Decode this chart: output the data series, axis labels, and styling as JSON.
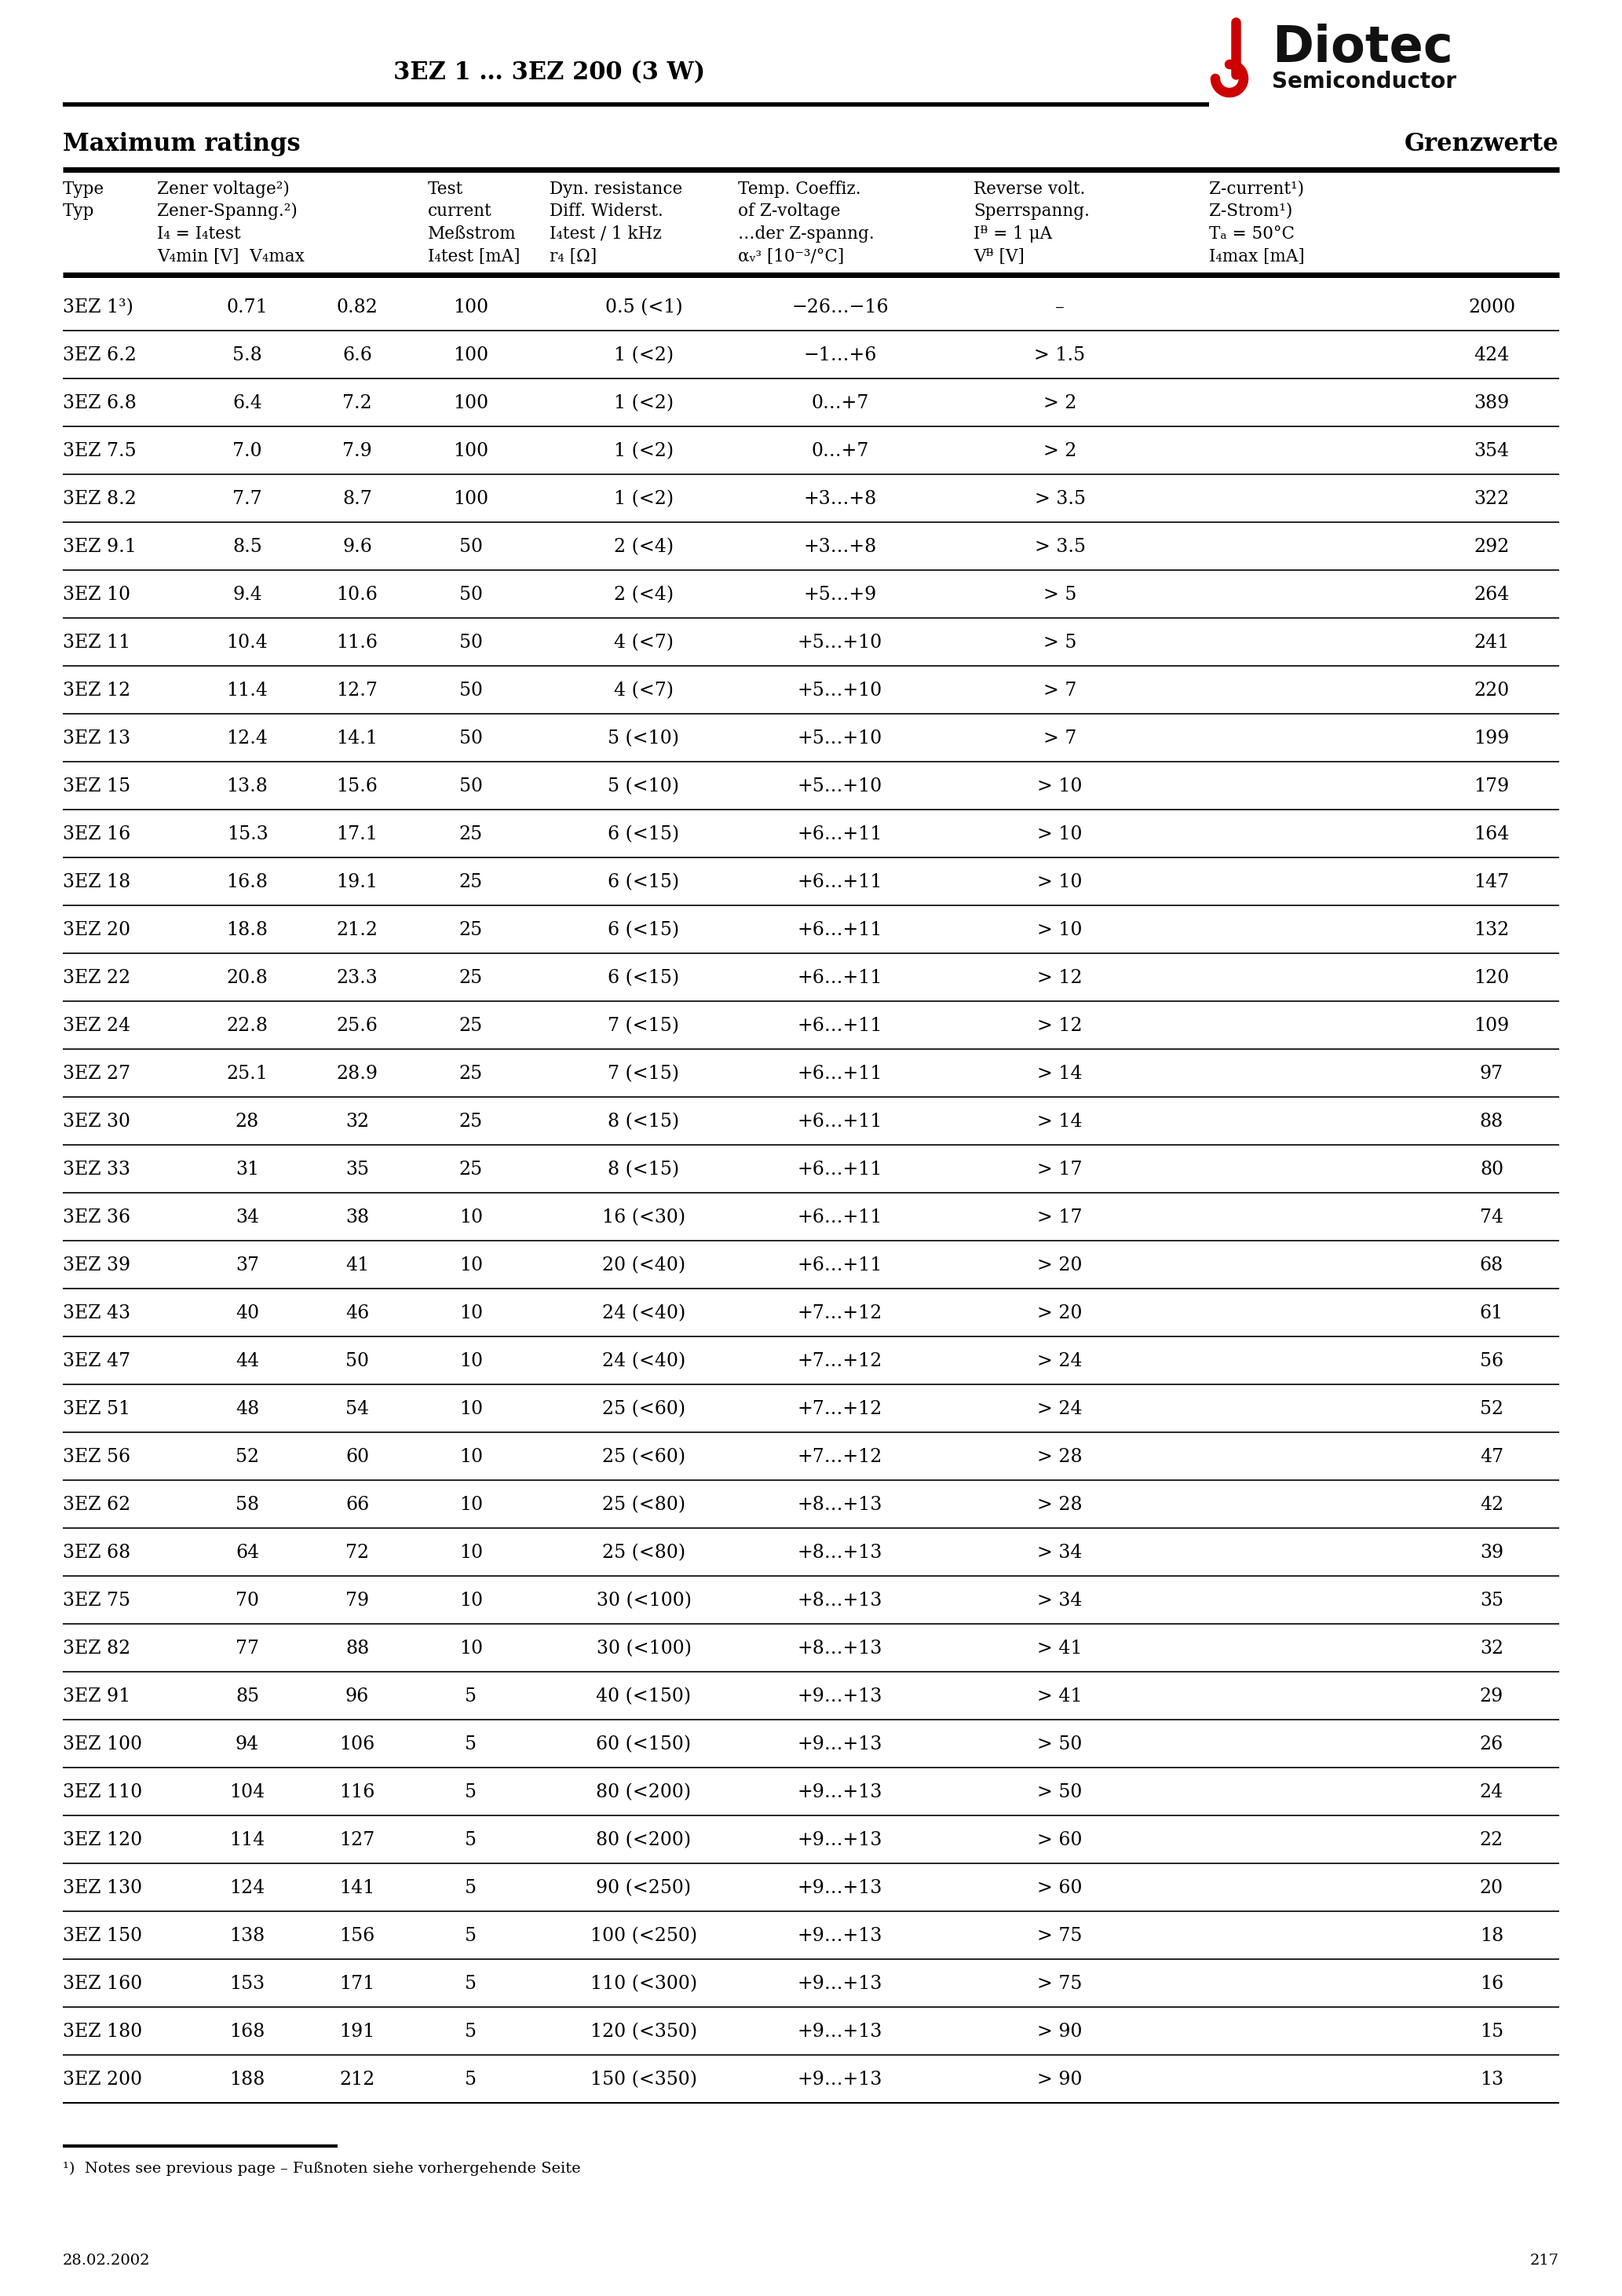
{
  "title": "3EZ 1 … 3EZ 200 (3 W)",
  "section_title_en": "Maximum ratings",
  "section_title_de": "Grenzwerte",
  "rows": [
    [
      "3EZ 1³)",
      "0.71",
      "0.82",
      "100",
      "0.5 (<1)",
      "−26…−16",
      "–",
      "2000"
    ],
    [
      "3EZ 6.2",
      "5.8",
      "6.6",
      "100",
      "1 (<2)",
      "−1…+6",
      "> 1.5",
      "424"
    ],
    [
      "3EZ 6.8",
      "6.4",
      "7.2",
      "100",
      "1 (<2)",
      "0…+7",
      "> 2",
      "389"
    ],
    [
      "3EZ 7.5",
      "7.0",
      "7.9",
      "100",
      "1 (<2)",
      "0…+7",
      "> 2",
      "354"
    ],
    [
      "3EZ 8.2",
      "7.7",
      "8.7",
      "100",
      "1 (<2)",
      "+3…+8",
      "> 3.5",
      "322"
    ],
    [
      "3EZ 9.1",
      "8.5",
      "9.6",
      "50",
      "2 (<4)",
      "+3…+8",
      "> 3.5",
      "292"
    ],
    [
      "3EZ 10",
      "9.4",
      "10.6",
      "50",
      "2 (<4)",
      "+5…+9",
      "> 5",
      "264"
    ],
    [
      "3EZ 11",
      "10.4",
      "11.6",
      "50",
      "4 (<7)",
      "+5…+10",
      "> 5",
      "241"
    ],
    [
      "3EZ 12",
      "11.4",
      "12.7",
      "50",
      "4 (<7)",
      "+5…+10",
      "> 7",
      "220"
    ],
    [
      "3EZ 13",
      "12.4",
      "14.1",
      "50",
      "5 (<10)",
      "+5…+10",
      "> 7",
      "199"
    ],
    [
      "3EZ 15",
      "13.8",
      "15.6",
      "50",
      "5 (<10)",
      "+5…+10",
      "> 10",
      "179"
    ],
    [
      "3EZ 16",
      "15.3",
      "17.1",
      "25",
      "6 (<15)",
      "+6…+11",
      "> 10",
      "164"
    ],
    [
      "3EZ 18",
      "16.8",
      "19.1",
      "25",
      "6 (<15)",
      "+6…+11",
      "> 10",
      "147"
    ],
    [
      "3EZ 20",
      "18.8",
      "21.2",
      "25",
      "6 (<15)",
      "+6…+11",
      "> 10",
      "132"
    ],
    [
      "3EZ 22",
      "20.8",
      "23.3",
      "25",
      "6 (<15)",
      "+6…+11",
      "> 12",
      "120"
    ],
    [
      "3EZ 24",
      "22.8",
      "25.6",
      "25",
      "7 (<15)",
      "+6…+11",
      "> 12",
      "109"
    ],
    [
      "3EZ 27",
      "25.1",
      "28.9",
      "25",
      "7 (<15)",
      "+6…+11",
      "> 14",
      "97"
    ],
    [
      "3EZ 30",
      "28",
      "32",
      "25",
      "8 (<15)",
      "+6…+11",
      "> 14",
      "88"
    ],
    [
      "3EZ 33",
      "31",
      "35",
      "25",
      "8 (<15)",
      "+6…+11",
      "> 17",
      "80"
    ],
    [
      "3EZ 36",
      "34",
      "38",
      "10",
      "16 (<30)",
      "+6…+11",
      "> 17",
      "74"
    ],
    [
      "3EZ 39",
      "37",
      "41",
      "10",
      "20 (<40)",
      "+6…+11",
      "> 20",
      "68"
    ],
    [
      "3EZ 43",
      "40",
      "46",
      "10",
      "24 (<40)",
      "+7…+12",
      "> 20",
      "61"
    ],
    [
      "3EZ 47",
      "44",
      "50",
      "10",
      "24 (<40)",
      "+7…+12",
      "> 24",
      "56"
    ],
    [
      "3EZ 51",
      "48",
      "54",
      "10",
      "25 (<60)",
      "+7…+12",
      "> 24",
      "52"
    ],
    [
      "3EZ 56",
      "52",
      "60",
      "10",
      "25 (<60)",
      "+7…+12",
      "> 28",
      "47"
    ],
    [
      "3EZ 62",
      "58",
      "66",
      "10",
      "25 (<80)",
      "+8…+13",
      "> 28",
      "42"
    ],
    [
      "3EZ 68",
      "64",
      "72",
      "10",
      "25 (<80)",
      "+8…+13",
      "> 34",
      "39"
    ],
    [
      "3EZ 75",
      "70",
      "79",
      "10",
      "30 (<100)",
      "+8…+13",
      "> 34",
      "35"
    ],
    [
      "3EZ 82",
      "77",
      "88",
      "10",
      "30 (<100)",
      "+8…+13",
      "> 41",
      "32"
    ],
    [
      "3EZ 91",
      "85",
      "96",
      "5",
      "40 (<150)",
      "+9…+13",
      "> 41",
      "29"
    ],
    [
      "3EZ 100",
      "94",
      "106",
      "5",
      "60 (<150)",
      "+9…+13",
      "> 50",
      "26"
    ],
    [
      "3EZ 110",
      "104",
      "116",
      "5",
      "80 (<200)",
      "+9…+13",
      "> 50",
      "24"
    ],
    [
      "3EZ 120",
      "114",
      "127",
      "5",
      "80 (<200)",
      "+9…+13",
      "> 60",
      "22"
    ],
    [
      "3EZ 130",
      "124",
      "141",
      "5",
      "90 (<250)",
      "+9…+13",
      "> 60",
      "20"
    ],
    [
      "3EZ 150",
      "138",
      "156",
      "5",
      "100 (<250)",
      "+9…+13",
      "> 75",
      "18"
    ],
    [
      "3EZ 160",
      "153",
      "171",
      "5",
      "110 (<300)",
      "+9…+13",
      "> 75",
      "16"
    ],
    [
      "3EZ 180",
      "168",
      "191",
      "5",
      "120 (<350)",
      "+9…+13",
      "> 90",
      "15"
    ],
    [
      "3EZ 200",
      "188",
      "212",
      "5",
      "150 (<350)",
      "+9…+13",
      "> 90",
      "13"
    ]
  ],
  "footnote": "¹)  Notes see previous page – Fußnoten siehe vorhergehende Seite",
  "date": "28.02.2002",
  "page_number": "217",
  "bg_color": "#ffffff"
}
